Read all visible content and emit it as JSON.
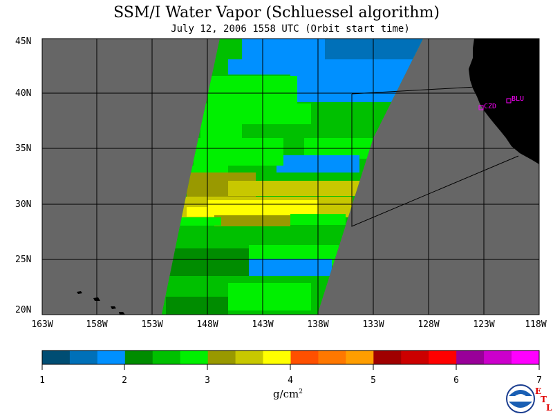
{
  "title": "SSM/I Water Vapor (Schluessel algorithm)",
  "subtitle": "July 12, 2006  1558 UTC  (Orbit start time)",
  "lat_labels": [
    "45N",
    "40N",
    "35N",
    "30N",
    "25N",
    "20N"
  ],
  "lon_labels": [
    "163W",
    "158W",
    "153W",
    "148W",
    "143W",
    "138W",
    "133W",
    "128W",
    "123W",
    "118W"
  ],
  "colorbar": {
    "tick_labels": [
      "1",
      "2",
      "3",
      "4",
      "5",
      "6",
      "7"
    ],
    "unit": "g/cm",
    "unit_exp": "2",
    "colors": [
      "#004d73",
      "#0070b8",
      "#0090ff",
      "#008c00",
      "#00c000",
      "#00f000",
      "#999900",
      "#c8c800",
      "#ffff00",
      "#ff5000",
      "#ff7800",
      "#ff9e00",
      "#a00000",
      "#cc0000",
      "#ff0000",
      "#990099",
      "#cc00cc",
      "#ff00ff"
    ]
  },
  "stations": [
    {
      "label": "CZD",
      "lon": -123.0,
      "lat": 38.6
    },
    {
      "label": "BLU",
      "lon": -120.8,
      "lat": 39.3
    }
  ],
  "logo": {
    "name": "NOAA",
    "side_letters": [
      "E",
      "T",
      "L"
    ]
  }
}
